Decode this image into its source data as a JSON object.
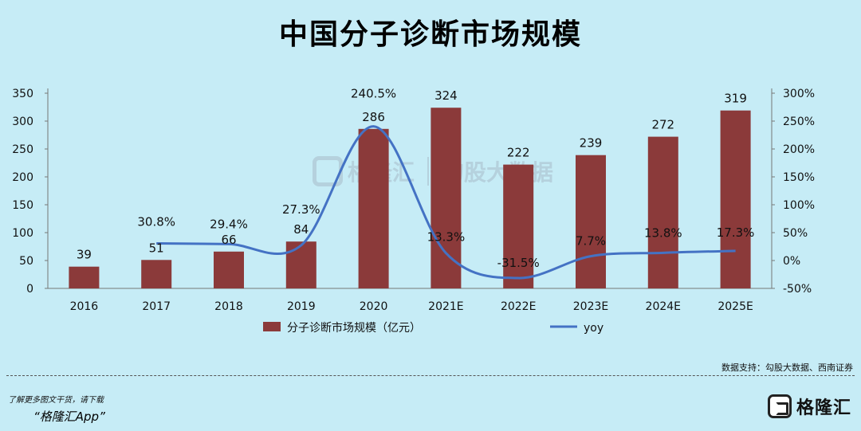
{
  "header": {
    "title": "中国分子诊断市场规模"
  },
  "chart_data": {
    "type": "bar",
    "categories": [
      "2016",
      "2017",
      "2018",
      "2019",
      "2020",
      "2021E",
      "2022E",
      "2023E",
      "2024E",
      "2025E"
    ],
    "series": [
      {
        "name": "分子诊断市场规模（亿元）",
        "type": "bar",
        "axis": "left",
        "values": [
          39,
          51,
          66,
          84,
          286,
          324,
          222,
          239,
          272,
          319
        ]
      },
      {
        "name": "yoy",
        "type": "line",
        "axis": "right",
        "values": [
          null,
          30.8,
          29.4,
          27.3,
          240.5,
          13.3,
          -31.5,
          7.7,
          13.8,
          17.3
        ]
      }
    ],
    "bar_labels": [
      "39",
      "51",
      "66",
      "84",
      "286",
      "324",
      "222",
      "239",
      "272",
      "319"
    ],
    "line_labels": [
      "",
      "30.8%",
      "29.4%",
      "27.3%",
      "240.5%",
      "13.3%",
      "-31.5%",
      "7.7%",
      "13.8%",
      "17.3%"
    ],
    "ylim_left": [
      0,
      350
    ],
    "ylim_right": [
      -50,
      300
    ],
    "left_ticks": [
      "0",
      "50",
      "100",
      "150",
      "200",
      "250",
      "300",
      "350"
    ],
    "right_ticks": [
      "-50%",
      "0%",
      "50%",
      "100%",
      "150%",
      "200%",
      "250%",
      "300%"
    ],
    "grid": false,
    "legend": "bottom",
    "colors": {
      "bar": "#8b3a3a",
      "line": "#4472c4"
    }
  },
  "source": "数据支持：勾股大数据、西南证券",
  "promo": {
    "line1": "了解更多图文干货，请下载",
    "line2": "“格隆汇App”"
  },
  "logo": {
    "text": "格隆汇"
  },
  "watermark": {
    "brand": "格隆汇",
    "brand2": "勾股大数据"
  }
}
